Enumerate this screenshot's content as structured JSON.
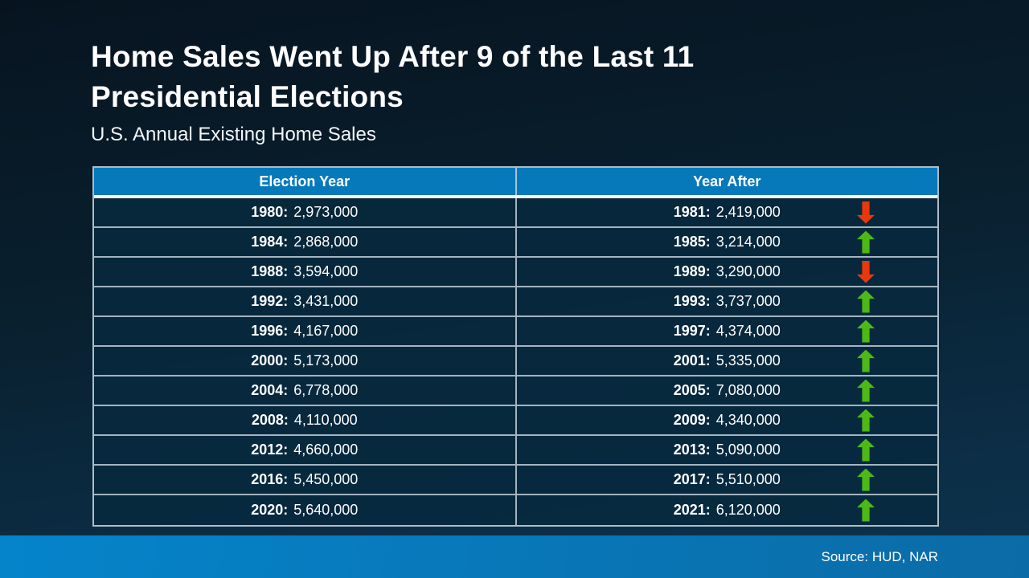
{
  "colors": {
    "header_bg": "#0679BB",
    "arrow_up": "#4CB917",
    "arrow_down": "#E8380D",
    "footer_left": "#0584CB",
    "footer_right": "#0B6BA6"
  },
  "header": {
    "title_line1": "Home Sales Went Up After 9 of the Last 11",
    "title_line2": "Presidential Elections",
    "subtitle": "U.S. Annual Existing Home Sales"
  },
  "table": {
    "columns": [
      "Election Year",
      "Year After"
    ],
    "rows": [
      {
        "election_label": "1980:",
        "election_value": "2,973,000",
        "after_label": "1981:",
        "after_value": "2,419,000",
        "direction": "down"
      },
      {
        "election_label": "1984:",
        "election_value": "2,868,000",
        "after_label": "1985:",
        "after_value": "3,214,000",
        "direction": "up"
      },
      {
        "election_label": "1988:",
        "election_value": "3,594,000",
        "after_label": "1989:",
        "after_value": "3,290,000",
        "direction": "down"
      },
      {
        "election_label": "1992:",
        "election_value": "3,431,000",
        "after_label": "1993:",
        "after_value": "3,737,000",
        "direction": "up"
      },
      {
        "election_label": "1996:",
        "election_value": "4,167,000",
        "after_label": "1997:",
        "after_value": "4,374,000",
        "direction": "up"
      },
      {
        "election_label": "2000:",
        "election_value": "5,173,000",
        "after_label": "2001:",
        "after_value": "5,335,000",
        "direction": "up"
      },
      {
        "election_label": "2004:",
        "election_value": "6,778,000",
        "after_label": "2005:",
        "after_value": "7,080,000",
        "direction": "up"
      },
      {
        "election_label": "2008:",
        "election_value": "4,110,000",
        "after_label": "2009:",
        "after_value": "4,340,000",
        "direction": "up"
      },
      {
        "election_label": "2012:",
        "election_value": "4,660,000",
        "after_label": "2013:",
        "after_value": "5,090,000",
        "direction": "up"
      },
      {
        "election_label": "2016:",
        "election_value": "5,450,000",
        "after_label": "2017:",
        "after_value": "5,510,000",
        "direction": "up"
      },
      {
        "election_label": "2020:",
        "election_value": "5,640,000",
        "after_label": "2021:",
        "after_value": "6,120,000",
        "direction": "up"
      }
    ]
  },
  "footer": {
    "source": "Source: HUD, NAR"
  },
  "chart_data": {
    "type": "table",
    "title": "Home Sales Went Up After 9 of the Last 11 Presidential Elections",
    "subtitle": "U.S. Annual Existing Home Sales",
    "columns": [
      "Election Year",
      "Year After"
    ],
    "rows": [
      {
        "election_year": 1980,
        "election_sales": 2973000,
        "year_after": 1981,
        "year_after_sales": 2419000,
        "change": "down"
      },
      {
        "election_year": 1984,
        "election_sales": 2868000,
        "year_after": 1985,
        "year_after_sales": 3214000,
        "change": "up"
      },
      {
        "election_year": 1988,
        "election_sales": 3594000,
        "year_after": 1989,
        "year_after_sales": 3290000,
        "change": "down"
      },
      {
        "election_year": 1992,
        "election_sales": 3431000,
        "year_after": 1993,
        "year_after_sales": 3737000,
        "change": "up"
      },
      {
        "election_year": 1996,
        "election_sales": 4167000,
        "year_after": 1997,
        "year_after_sales": 4374000,
        "change": "up"
      },
      {
        "election_year": 2000,
        "election_sales": 5173000,
        "year_after": 2001,
        "year_after_sales": 5335000,
        "change": "up"
      },
      {
        "election_year": 2004,
        "election_sales": 6778000,
        "year_after": 2005,
        "year_after_sales": 7080000,
        "change": "up"
      },
      {
        "election_year": 2008,
        "election_sales": 4110000,
        "year_after": 2009,
        "year_after_sales": 4340000,
        "change": "up"
      },
      {
        "election_year": 2012,
        "election_sales": 4660000,
        "year_after": 2013,
        "year_after_sales": 5090000,
        "change": "up"
      },
      {
        "election_year": 2016,
        "election_sales": 5450000,
        "year_after": 2017,
        "year_after_sales": 5510000,
        "change": "up"
      },
      {
        "election_year": 2020,
        "election_sales": 5640000,
        "year_after": 2021,
        "year_after_sales": 6120000,
        "change": "up"
      }
    ],
    "source": "Source: HUD, NAR"
  }
}
